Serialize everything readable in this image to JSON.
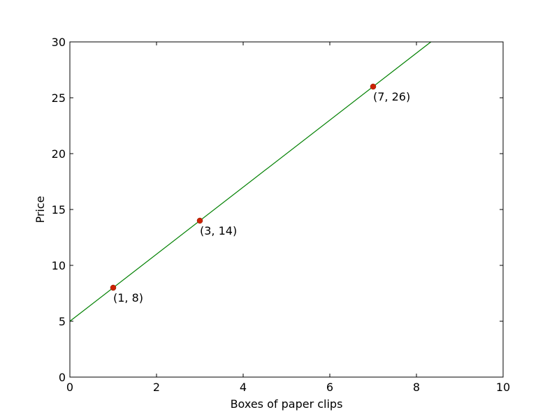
{
  "chart_data": {
    "type": "line",
    "title": "",
    "xlabel": "Boxes of paper clips",
    "ylabel": "Price",
    "xlim": [
      0,
      10
    ],
    "ylim": [
      0,
      30
    ],
    "xticks": [
      0,
      2,
      4,
      6,
      8,
      10
    ],
    "yticks": [
      0,
      5,
      10,
      15,
      20,
      25,
      30
    ],
    "grid": false,
    "line": {
      "slope": 3,
      "intercept": 5,
      "color": "#008000"
    },
    "points": [
      {
        "x": 1,
        "y": 8,
        "label": "(1, 8)"
      },
      {
        "x": 3,
        "y": 14,
        "label": "(3, 14)"
      },
      {
        "x": 7,
        "y": 26,
        "label": "(7, 26)"
      }
    ],
    "point_color": "#cc2200"
  }
}
